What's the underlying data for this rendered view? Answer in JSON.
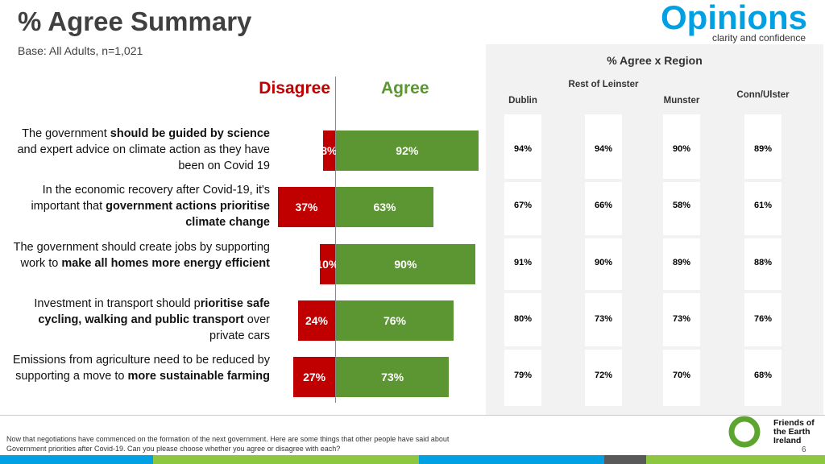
{
  "header": {
    "title": "% Agree Summary",
    "subtitle": "Base: All Adults, n=1,021",
    "logo": "Opinions",
    "tagline": "clarity and confidence"
  },
  "chart_data": {
    "type": "diverging-bar",
    "categories": [
      [
        "The government ",
        "should be guided by science",
        " and expert advice on climate action as they have been on Covid 19"
      ],
      [
        "In the economic recovery after Covid-19, it's important that ",
        "government actions prioritise climate change"
      ],
      [
        "The government should create jobs by supporting work to ",
        "make all homes more energy efficient"
      ],
      [
        "Investment in transport should p",
        "rioritise safe cycling, walking and public transport",
        " over private cars"
      ],
      [
        "Emissions from agriculture need to be reduced by supporting a move to ",
        "more sustainable farming"
      ]
    ],
    "series": [
      {
        "name": "Disagree",
        "color": "#c00000",
        "values": [
          8,
          37,
          10,
          24,
          27
        ],
        "value_labels": [
          "8%",
          "37%",
          "10%",
          "24%",
          "27%"
        ]
      },
      {
        "name": "Agree",
        "color": "#5b9632",
        "values": [
          92,
          63,
          90,
          76,
          73
        ],
        "value_labels": [
          "92%",
          "63%",
          "90%",
          "76%",
          "73%"
        ]
      }
    ]
  },
  "region_table": {
    "title": "% Agree x Region",
    "columns": [
      "Dublin",
      "Rest of Leinster",
      "Munster",
      "Conn/Ulster"
    ],
    "rows": [
      [
        "94%",
        "94%",
        "90%",
        "89%"
      ],
      [
        "67%",
        "66%",
        "58%",
        "61%"
      ],
      [
        "91%",
        "90%",
        "89%",
        "88%"
      ],
      [
        "80%",
        "73%",
        "73%",
        "76%"
      ],
      [
        "79%",
        "72%",
        "70%",
        "68%"
      ]
    ]
  },
  "footer": {
    "note": "Now that negotiations have commenced on the formation of the next government.  Here are some things that other people have said about Government priorities after Covid-19.  Can you please choose whether you agree or disagree with each?",
    "partner": "Friends of the Earth Ireland",
    "page": "6"
  }
}
